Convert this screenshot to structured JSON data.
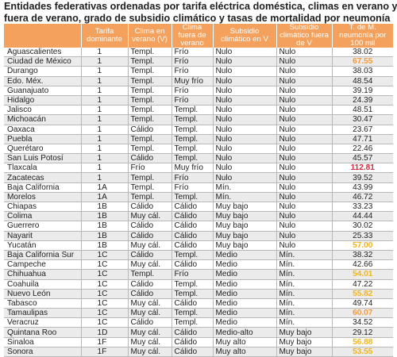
{
  "title_lines": [
    "Entidades federativas ordenadas por tarifa eléctrica doméstica, climas en verano y",
    "fuera de verano, grado de subsidio climático y tasas de mortalidad por neumonía"
  ],
  "headers": [
    "",
    "Tarifa dominante",
    "Clima en verano (V)",
    "Clima fuera de verano",
    "Subsidio climático en V",
    "Subsidio climático fuera de V",
    "T. de M. neumonía por 100 mil"
  ],
  "colors": {
    "header_bg": "#f3a15c",
    "highlight_orange": "#f39a3c",
    "highlight_red": "#d8263b",
    "highlight_yellow": "#f0b51c"
  },
  "rows": [
    {
      "estado": "Aguascalientes",
      "tarifa": "1",
      "clima_v": "Templ.",
      "clima_fv": "Frío",
      "sub_v": "Nulo",
      "sub_fv": "Nulo",
      "mort": "38.02",
      "hl": ""
    },
    {
      "estado": "Ciudad de México",
      "tarifa": "1",
      "clima_v": "Templ.",
      "clima_fv": "Frío",
      "sub_v": "Nulo",
      "sub_fv": "Nulo",
      "mort": "67.55",
      "hl": "orange"
    },
    {
      "estado": "Durango",
      "tarifa": "1",
      "clima_v": "Templ.",
      "clima_fv": "Frío",
      "sub_v": "Nulo",
      "sub_fv": "Nulo",
      "mort": "38.03",
      "hl": ""
    },
    {
      "estado": "Edo. Méx.",
      "tarifa": "1",
      "clima_v": "Templ.",
      "clima_fv": "Muy frío",
      "sub_v": "Nulo",
      "sub_fv": "Nulo",
      "mort": "48.54",
      "hl": ""
    },
    {
      "estado": "Guanajuato",
      "tarifa": "1",
      "clima_v": "Templ.",
      "clima_fv": "Frío",
      "sub_v": "Nulo",
      "sub_fv": "Nulo",
      "mort": "39.19",
      "hl": ""
    },
    {
      "estado": "Hidalgo",
      "tarifa": "1",
      "clima_v": "Templ.",
      "clima_fv": "Frío",
      "sub_v": "Nulo",
      "sub_fv": "Nulo",
      "mort": "24.39",
      "hl": ""
    },
    {
      "estado": "Jalisco",
      "tarifa": "1",
      "clima_v": "Templ.",
      "clima_fv": "Templ.",
      "sub_v": "Nulo",
      "sub_fv": "Nulo",
      "mort": "48.51",
      "hl": ""
    },
    {
      "estado": "Michoacán",
      "tarifa": "1",
      "clima_v": "Templ.",
      "clima_fv": "Templ.",
      "sub_v": "Nulo",
      "sub_fv": "Nulo",
      "mort": "30.47",
      "hl": ""
    },
    {
      "estado": "Oaxaca",
      "tarifa": "1",
      "clima_v": "Cálido",
      "clima_fv": "Templ.",
      "sub_v": "Nulo",
      "sub_fv": "Nulo",
      "mort": "23.67",
      "hl": ""
    },
    {
      "estado": "Puebla",
      "tarifa": "1",
      "clima_v": "Templ.",
      "clima_fv": "Templ.",
      "sub_v": "Nulo",
      "sub_fv": "Nulo",
      "mort": "47.71",
      "hl": ""
    },
    {
      "estado": "Querétaro",
      "tarifa": "1",
      "clima_v": "Templ.",
      "clima_fv": "Templ.",
      "sub_v": "Nulo",
      "sub_fv": "Nulo",
      "mort": "22.46",
      "hl": ""
    },
    {
      "estado": "San Luis Potosí",
      "tarifa": "1",
      "clima_v": "Cálido",
      "clima_fv": "Templ.",
      "sub_v": "Nulo",
      "sub_fv": "Nulo",
      "mort": "45.57",
      "hl": ""
    },
    {
      "estado": "Tlaxcala",
      "tarifa": "1",
      "clima_v": "Frío",
      "clima_fv": "Muy frío",
      "sub_v": "Nulo",
      "sub_fv": "Nulo",
      "mort": "112.81",
      "hl": "red"
    },
    {
      "estado": "Zacatecas",
      "tarifa": "1",
      "clima_v": "Templ.",
      "clima_fv": "Frío",
      "sub_v": "Nulo",
      "sub_fv": "Nulo",
      "mort": "39.52",
      "hl": ""
    },
    {
      "estado": "Baja California",
      "tarifa": "1A",
      "clima_v": "Templ.",
      "clima_fv": "Frío",
      "sub_v": "Mín.",
      "sub_fv": "Nulo",
      "mort": "43.99",
      "hl": ""
    },
    {
      "estado": "Morelos",
      "tarifa": "1A",
      "clima_v": "Templ.",
      "clima_fv": "Templ.",
      "sub_v": "Mín.",
      "sub_fv": "Nulo",
      "mort": "46.72",
      "hl": ""
    },
    {
      "estado": "Chiapas",
      "tarifa": "1B",
      "clima_v": "Cálido",
      "clima_fv": "Cálido",
      "sub_v": "Muy bajo",
      "sub_fv": "Nulo",
      "mort": "33.23",
      "hl": ""
    },
    {
      "estado": "Colima",
      "tarifa": "1B",
      "clima_v": "Muy cál.",
      "clima_fv": "Cálido",
      "sub_v": "Muy bajo",
      "sub_fv": "Nulo",
      "mort": "44.44",
      "hl": ""
    },
    {
      "estado": "Guerrero",
      "tarifa": "1B",
      "clima_v": "Cálido",
      "clima_fv": "Cálido",
      "sub_v": "Muy bajo",
      "sub_fv": "Nulo",
      "mort": "30.02",
      "hl": ""
    },
    {
      "estado": "Nayarit",
      "tarifa": "1B",
      "clima_v": "Cálido",
      "clima_fv": "Cálido",
      "sub_v": "Muy bajo",
      "sub_fv": "Nulo",
      "mort": "25.33",
      "hl": ""
    },
    {
      "estado": "Yucatán",
      "tarifa": "1B",
      "clima_v": "Muy cál.",
      "clima_fv": "Cálido",
      "sub_v": "Muy bajo",
      "sub_fv": "Nulo",
      "mort": "57.00",
      "hl": "yellow"
    },
    {
      "estado": "Baja California Sur",
      "tarifa": "1C",
      "clima_v": "Cálido",
      "clima_fv": "Templ.",
      "sub_v": "Medio",
      "sub_fv": "Mín.",
      "mort": "38.32",
      "hl": ""
    },
    {
      "estado": "Campeche",
      "tarifa": "1C",
      "clima_v": "Muy cál.",
      "clima_fv": "Cálido",
      "sub_v": "Medio",
      "sub_fv": "Mín.",
      "mort": "42.66",
      "hl": ""
    },
    {
      "estado": "Chihuahua",
      "tarifa": "1C",
      "clima_v": "Templ.",
      "clima_fv": "Frío",
      "sub_v": "Medio",
      "sub_fv": "Mín.",
      "mort": "54.01",
      "hl": "yellow"
    },
    {
      "estado": "Coahuila",
      "tarifa": "1C",
      "clima_v": "Cálido",
      "clima_fv": "Templ.",
      "sub_v": "Medio",
      "sub_fv": "Mín.",
      "mort": "47.22",
      "hl": ""
    },
    {
      "estado": "Nuevo León",
      "tarifa": "1C",
      "clima_v": "Cálido",
      "clima_fv": "Templ.",
      "sub_v": "Medio",
      "sub_fv": "Mín.",
      "mort": "55.82",
      "hl": "yellow"
    },
    {
      "estado": "Tabasco",
      "tarifa": "1C",
      "clima_v": "Muy cál.",
      "clima_fv": "Cálido",
      "sub_v": "Medio",
      "sub_fv": "Mín.",
      "mort": "49.74",
      "hl": ""
    },
    {
      "estado": "Tamaulipas",
      "tarifa": "1C",
      "clima_v": "Muy cál.",
      "clima_fv": "Templ.",
      "sub_v": "Medio",
      "sub_fv": "Mín.",
      "mort": "60.07",
      "hl": "orange"
    },
    {
      "estado": "Veracruz",
      "tarifa": "1C",
      "clima_v": "Cálido",
      "clima_fv": "Templ.",
      "sub_v": "Medio",
      "sub_fv": "Mín.",
      "mort": "34.52",
      "hl": ""
    },
    {
      "estado": "Quintana Roo",
      "tarifa": "1D",
      "clima_v": "Muy cál.",
      "clima_fv": "Cálido",
      "sub_v": "Medio-alto",
      "sub_fv": "Muy bajo",
      "mort": "29.12",
      "hl": ""
    },
    {
      "estado": "Sinaloa",
      "tarifa": "1F",
      "clima_v": "Muy cál.",
      "clima_fv": "Cálido",
      "sub_v": "Muy alto",
      "sub_fv": "Muy bajo",
      "mort": "56.88",
      "hl": "yellow"
    },
    {
      "estado": "Sonora",
      "tarifa": "1F",
      "clima_v": "Muy cál.",
      "clima_fv": "Cálido",
      "sub_v": "Muy alto",
      "sub_fv": "Muy bajo",
      "mort": "53.55",
      "hl": "yellow"
    }
  ]
}
